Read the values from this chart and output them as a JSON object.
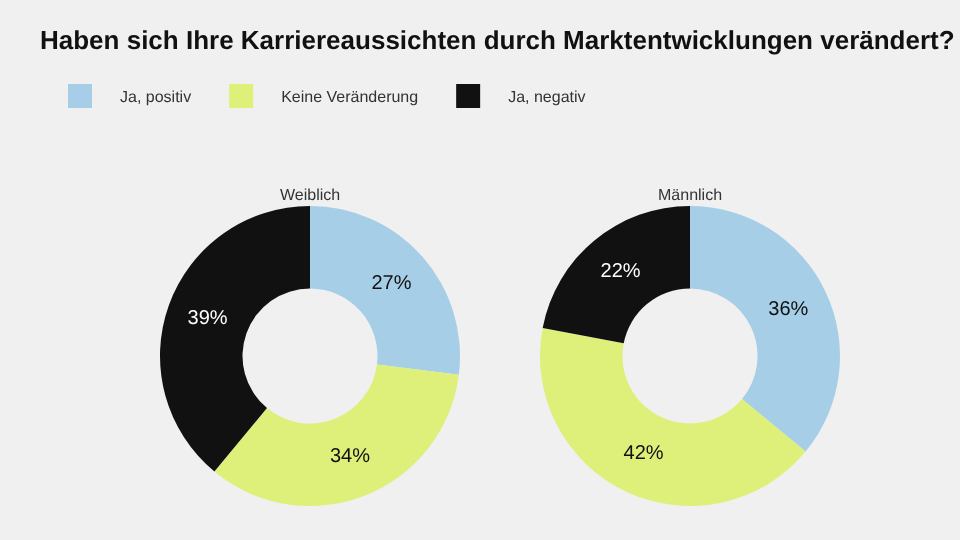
{
  "chart_data": [
    {
      "type": "donut",
      "title": "Haben sich Ihre Karriereaussichten durch Marktentwicklungen verändert?",
      "subtitle": "Weiblich",
      "categories": [
        "Ja, positiv",
        "Keine Veränderung",
        "Ja, negativ"
      ],
      "values": [
        27,
        34,
        39
      ],
      "value_labels": [
        "27%",
        "34%",
        "39%"
      ],
      "colors": [
        "#a6cee6",
        "#def07a",
        "#111111"
      ],
      "legend": "top"
    },
    {
      "type": "donut",
      "subtitle": "Männlich",
      "categories": [
        null,
        null,
        null
      ],
      "values": [
        36,
        42,
        22
      ],
      "value_labels": [
        "36%",
        "42%",
        "22%"
      ],
      "colors": [
        "#a6cee6",
        "#def07a",
        "#111111"
      ]
    }
  ]
}
